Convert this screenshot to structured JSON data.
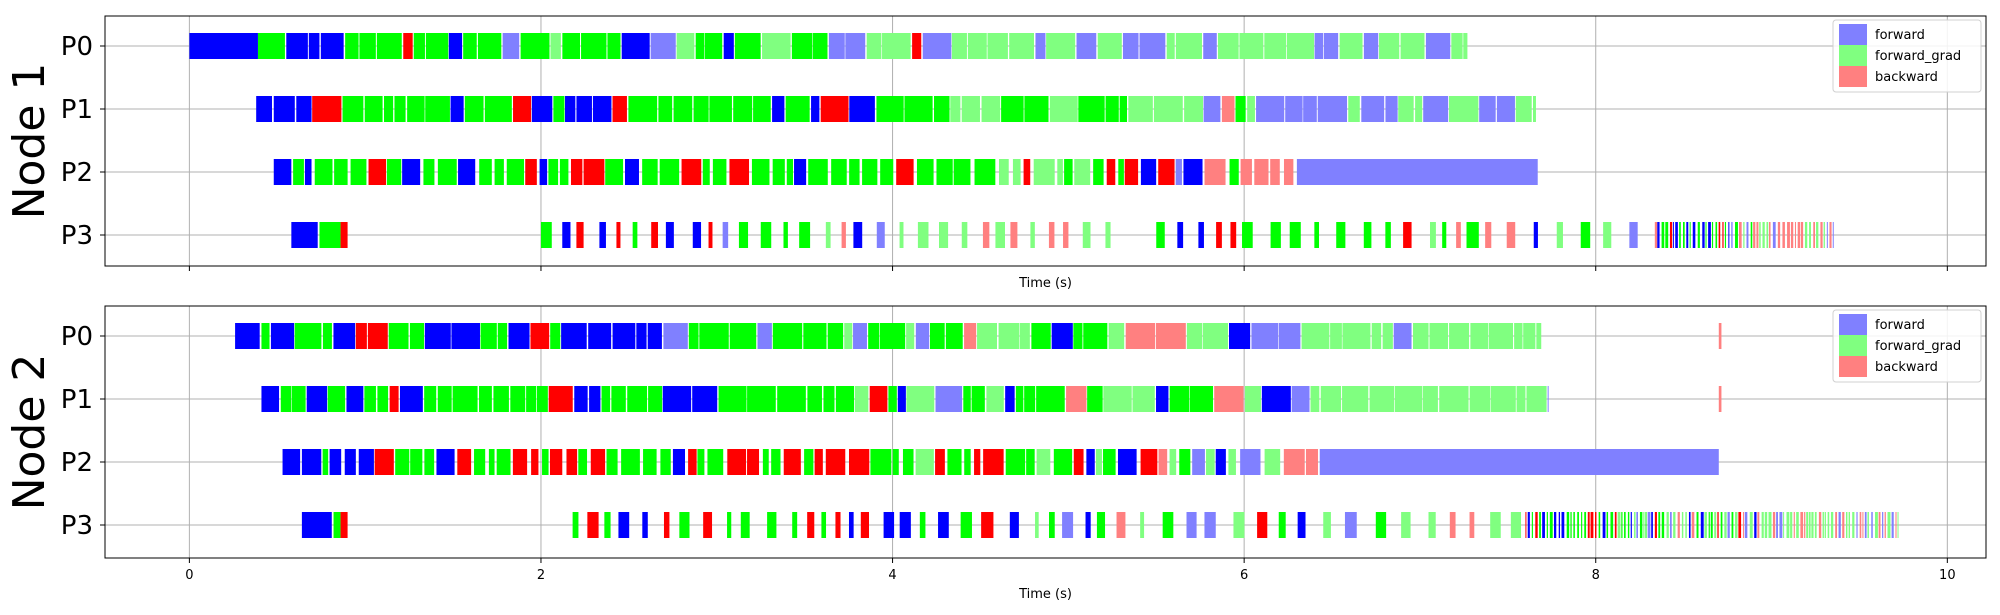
{
  "chart_data": [
    {
      "type": "timeline",
      "ylabel": "Node 1",
      "xlabel": "Time (s)",
      "xlim": [
        -0.48,
        10.22
      ],
      "xticks": [
        0,
        2,
        4,
        6,
        8,
        10
      ],
      "show_xtick_labels": false,
      "grid": true,
      "legend_position": "top-right",
      "rows": [
        "P0",
        "P1",
        "P2",
        "P3"
      ],
      "lanes": [
        {
          "row": "P0",
          "start": 0.39,
          "end": 7.27,
          "mix": "dense",
          "seed": 3,
          "shift": 0
        },
        {
          "row": "P1",
          "start": 0.48,
          "end": 7.66,
          "mix": "dense",
          "seed": 7,
          "shift": 0.2
        },
        {
          "row": "P2",
          "start": 0.59,
          "end": 6.28,
          "mix": "redmix",
          "seed": 11,
          "shift": 0.4
        },
        {
          "row": "P3",
          "start": 2.0,
          "end": 5.24,
          "mix": "sparse",
          "seed": 19,
          "shift": 0
        },
        {
          "row": "P3",
          "start": 5.5,
          "end": 8.35,
          "mix": "sparse",
          "seed": 23,
          "shift": 0.3
        },
        {
          "row": "P3",
          "start": 8.35,
          "end": 9.35,
          "mix": "fine",
          "seed": 29,
          "shift": 0
        }
      ],
      "segments": [
        {
          "row": "P0",
          "start": 0.0,
          "end": 0.39,
          "kind": "forward",
          "light": false
        },
        {
          "row": "P0",
          "start": 0.4,
          "end": 0.46,
          "kind": "forward_grad",
          "light": false
        },
        {
          "row": "P1",
          "start": 0.38,
          "end": 0.47,
          "kind": "forward",
          "light": false
        },
        {
          "row": "P2",
          "start": 0.48,
          "end": 0.58,
          "kind": "forward",
          "light": false
        },
        {
          "row": "P2",
          "start": 6.3,
          "end": 7.67,
          "kind": "forward",
          "light": true
        },
        {
          "row": "P3",
          "start": 0.58,
          "end": 0.73,
          "kind": "forward",
          "light": false
        },
        {
          "row": "P3",
          "start": 0.74,
          "end": 0.86,
          "kind": "forward_grad",
          "light": false
        },
        {
          "row": "P3",
          "start": 0.86,
          "end": 0.9,
          "kind": "backward",
          "light": false
        }
      ],
      "legend": [
        {
          "label": "forward",
          "color": "#8080ff"
        },
        {
          "label": "forward_grad",
          "color": "#80ff80"
        },
        {
          "label": "backward",
          "color": "#ff8080"
        }
      ]
    },
    {
      "type": "timeline",
      "ylabel": "Node 2",
      "xlabel": "Time (s)",
      "xlim": [
        -0.48,
        10.22
      ],
      "xticks": [
        0,
        2,
        4,
        6,
        8,
        10
      ],
      "show_xtick_labels": true,
      "grid": true,
      "legend_position": "top-right",
      "rows": [
        "P0",
        "P1",
        "P2",
        "P3"
      ],
      "lanes": [
        {
          "row": "P0",
          "start": 0.41,
          "end": 7.69,
          "mix": "dense",
          "seed": 31,
          "shift": 0.1
        },
        {
          "row": "P1",
          "start": 0.52,
          "end": 7.73,
          "mix": "dense",
          "seed": 37,
          "shift": 0.2
        },
        {
          "row": "P2",
          "start": 0.64,
          "end": 6.42,
          "mix": "redmix",
          "seed": 41,
          "shift": 0.4
        },
        {
          "row": "P3",
          "start": 2.18,
          "end": 7.6,
          "mix": "sparse",
          "seed": 43,
          "shift": 0.2
        },
        {
          "row": "P3",
          "start": 7.6,
          "end": 9.72,
          "mix": "fine",
          "seed": 47,
          "shift": 0
        }
      ],
      "segments": [
        {
          "row": "P0",
          "start": 0.26,
          "end": 0.4,
          "kind": "forward",
          "light": false
        },
        {
          "row": "P1",
          "start": 0.41,
          "end": 0.51,
          "kind": "forward",
          "light": false
        },
        {
          "row": "P2",
          "start": 0.53,
          "end": 0.63,
          "kind": "forward",
          "light": false
        },
        {
          "row": "P2",
          "start": 6.43,
          "end": 8.7,
          "kind": "forward",
          "light": true
        },
        {
          "row": "P3",
          "start": 0.64,
          "end": 0.81,
          "kind": "forward",
          "light": false
        },
        {
          "row": "P3",
          "start": 0.82,
          "end": 0.86,
          "kind": "forward_grad",
          "light": false
        },
        {
          "row": "P3",
          "start": 0.86,
          "end": 0.9,
          "kind": "backward",
          "light": false
        },
        {
          "row": "P0",
          "start": 8.7,
          "end": 8.715,
          "kind": "backward",
          "light": true
        },
        {
          "row": "P1",
          "start": 8.7,
          "end": 8.715,
          "kind": "backward",
          "light": true
        }
      ],
      "legend": [
        {
          "label": "forward",
          "color": "#8080ff"
        },
        {
          "label": "forward_grad",
          "color": "#80ff80"
        },
        {
          "label": "backward",
          "color": "#ff8080"
        }
      ]
    }
  ],
  "colors": {
    "forward": "#0000ff",
    "forward_light": "#8080ff",
    "forward_grad": "#00ff00",
    "forward_grad_light": "#80ff80",
    "backward": "#ff0000",
    "backward_light": "#ff8080",
    "grid": "#b0b0b0"
  }
}
